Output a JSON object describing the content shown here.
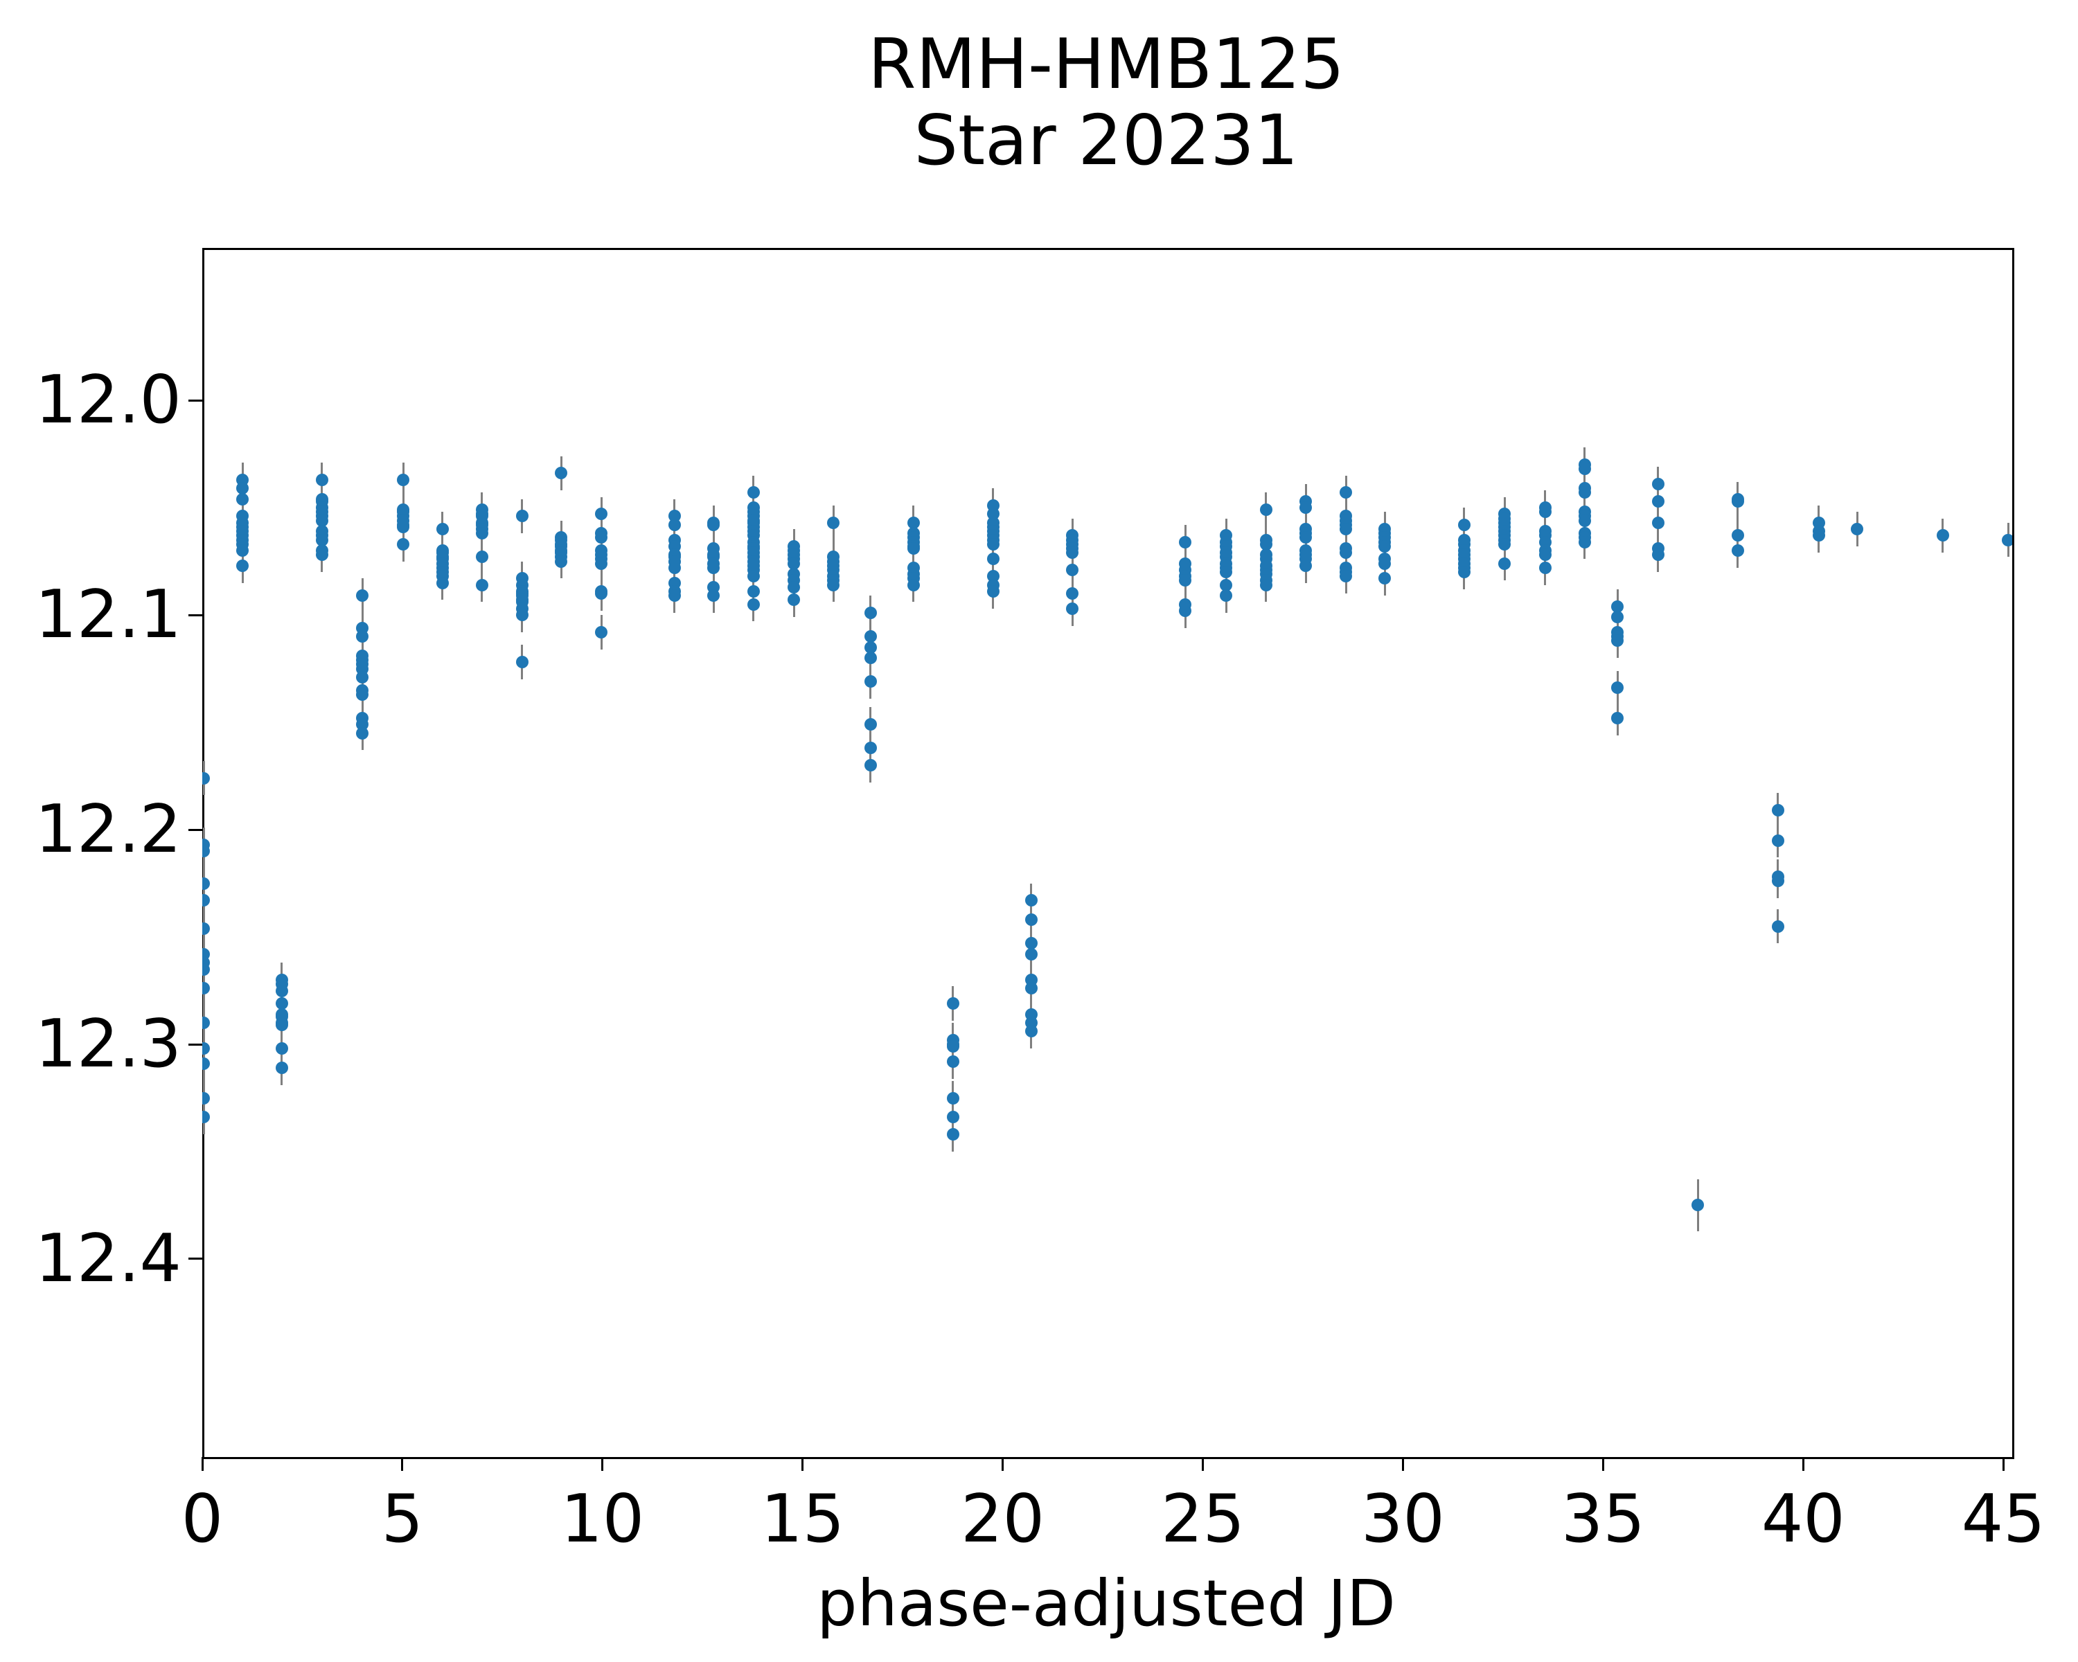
{
  "title": {
    "line1": "RMH-HMB125",
    "line2": "Star 20231"
  },
  "chart_data": {
    "type": "scatter",
    "title": "RMH-HMB125\nStar 20231",
    "xlabel": "phase-adjusted JD",
    "ylabel": "",
    "legend": "none",
    "grid": false,
    "marker_color": "#1f77b4",
    "errorbar_color": "#7f7f7f",
    "default_err_mag": 0.008,
    "axes": {
      "xlim": [
        0,
        45.17
      ],
      "ylim_top": 11.929,
      "ylim_bottom": 12.4913,
      "y_inverted_magnitude_axis": true,
      "x_ticks": [
        0,
        5,
        10,
        15,
        20,
        25,
        30,
        35,
        40,
        45
      ],
      "y_ticks": [
        12.0,
        12.1,
        12.2,
        12.3,
        12.4
      ],
      "y_tick_labels": [
        "12.0",
        "12.1",
        "12.2",
        "12.3",
        "12.4"
      ]
    },
    "clusters": [
      {
        "x": 0.04,
        "mags": [
          12.176,
          12.207,
          12.21,
          12.225,
          12.233,
          12.246,
          12.258,
          12.262,
          12.265,
          12.274,
          12.29,
          12.302,
          12.309,
          12.325,
          12.334
        ]
      },
      {
        "x": 1.01,
        "mags": [
          12.037,
          12.041,
          12.046,
          12.054,
          12.057,
          12.059,
          12.061,
          12.063,
          12.065,
          12.067,
          12.07,
          12.077
        ]
      },
      {
        "x": 1.99,
        "mags": [
          12.27,
          12.272,
          12.275,
          12.281,
          12.286,
          12.287,
          12.29,
          12.291,
          12.302,
          12.311
        ]
      },
      {
        "x": 2.99,
        "mags": [
          12.037,
          12.046,
          12.047,
          12.05,
          12.052,
          12.054,
          12.056,
          12.061,
          12.063,
          12.065,
          12.07,
          12.072
        ]
      },
      {
        "x": 4.0,
        "mags": [
          12.091,
          12.106,
          12.11,
          12.119,
          12.121,
          12.123,
          12.125,
          12.129,
          12.135,
          12.137,
          12.148,
          12.151,
          12.155
        ]
      },
      {
        "x": 5.02,
        "mags": [
          12.037,
          12.051,
          12.052,
          12.054,
          12.056,
          12.058,
          12.059,
          12.067
        ]
      },
      {
        "x": 6.0,
        "mags": [
          12.06,
          12.07,
          12.071,
          12.073,
          12.074,
          12.076,
          12.078,
          12.08,
          12.082,
          12.085
        ]
      },
      {
        "x": 6.99,
        "mags": [
          12.051,
          12.053,
          12.054,
          12.057,
          12.058,
          12.06,
          12.062,
          12.073,
          12.086
        ]
      },
      {
        "x": 7.99,
        "mags": [
          12.054,
          12.083,
          12.086,
          12.089,
          12.09,
          12.091,
          12.093,
          12.094,
          12.097,
          12.1,
          12.122
        ]
      },
      {
        "x": 8.97,
        "mags": [
          12.034,
          12.064,
          12.065,
          12.067,
          12.068,
          12.07,
          12.071,
          12.073,
          12.075
        ]
      },
      {
        "x": 9.97,
        "mags": [
          12.053,
          12.062,
          12.064,
          12.07,
          12.072,
          12.074,
          12.076,
          12.089,
          12.09,
          12.108
        ]
      },
      {
        "x": 11.8,
        "mags": [
          12.054,
          12.058,
          12.065,
          12.068,
          12.072,
          12.073,
          12.075,
          12.078,
          12.085,
          12.089,
          12.091
        ]
      },
      {
        "x": 12.78,
        "mags": [
          12.057,
          12.058,
          12.069,
          12.072,
          12.073,
          12.076,
          12.078,
          12.087,
          12.091
        ]
      },
      {
        "x": 13.77,
        "mags": [
          12.043,
          12.05,
          12.052,
          12.054,
          12.056,
          12.057,
          12.059,
          12.061,
          12.063,
          12.066,
          12.068,
          12.069,
          12.071,
          12.073,
          12.075,
          12.077,
          12.079,
          12.082,
          12.089,
          12.095
        ]
      },
      {
        "x": 14.78,
        "mags": [
          12.068,
          12.07,
          12.072,
          12.074,
          12.076,
          12.081,
          12.084,
          12.087,
          12.093
        ]
      },
      {
        "x": 15.77,
        "mags": [
          12.057,
          12.073,
          12.075,
          12.077,
          12.079,
          12.082,
          12.084,
          12.086
        ]
      },
      {
        "x": 16.7,
        "mags": [
          12.099,
          12.11,
          12.115,
          12.12,
          12.131,
          12.151,
          12.162,
          12.17
        ]
      },
      {
        "x": 17.77,
        "mags": [
          12.057,
          12.062,
          12.064,
          12.066,
          12.068,
          12.069,
          12.078,
          12.081,
          12.083,
          12.086
        ]
      },
      {
        "x": 18.76,
        "mags": [
          12.281,
          12.298,
          12.3,
          12.301,
          12.308,
          12.325,
          12.334,
          12.342
        ]
      },
      {
        "x": 19.76,
        "mags": [
          12.049,
          12.053,
          12.057,
          12.059,
          12.061,
          12.063,
          12.065,
          12.067,
          12.074,
          12.082,
          12.086,
          12.089
        ]
      },
      {
        "x": 20.71,
        "mags": [
          12.233,
          12.242,
          12.253,
          12.258,
          12.27,
          12.274,
          12.286,
          12.29,
          12.294
        ]
      },
      {
        "x": 21.74,
        "mags": [
          12.063,
          12.065,
          12.067,
          12.069,
          12.071,
          12.079,
          12.09,
          12.097
        ]
      },
      {
        "x": 24.56,
        "mags": [
          12.066,
          12.076,
          12.079,
          12.082,
          12.084,
          12.095,
          12.098
        ]
      },
      {
        "x": 25.58,
        "mags": [
          12.063,
          12.066,
          12.068,
          12.071,
          12.073,
          12.076,
          12.078,
          12.08,
          12.086,
          12.091
        ]
      },
      {
        "x": 26.58,
        "mags": [
          12.051,
          12.065,
          12.067,
          12.072,
          12.074,
          12.077,
          12.079,
          12.081,
          12.084,
          12.086
        ]
      },
      {
        "x": 27.57,
        "mags": [
          12.047,
          12.05,
          12.06,
          12.062,
          12.064,
          12.07,
          12.072,
          12.074,
          12.077
        ]
      },
      {
        "x": 28.58,
        "mags": [
          12.043,
          12.054,
          12.056,
          12.058,
          12.06,
          12.069,
          12.071,
          12.078,
          12.08,
          12.082
        ]
      },
      {
        "x": 29.55,
        "mags": [
          12.06,
          12.062,
          12.064,
          12.066,
          12.068,
          12.074,
          12.076,
          12.083
        ]
      },
      {
        "x": 31.53,
        "mags": [
          12.058,
          12.065,
          12.067,
          12.07,
          12.072,
          12.074,
          12.076,
          12.078,
          12.08
        ]
      },
      {
        "x": 32.54,
        "mags": [
          12.053,
          12.055,
          12.057,
          12.059,
          12.061,
          12.063,
          12.065,
          12.067,
          12.076
        ]
      },
      {
        "x": 33.55,
        "mags": [
          12.05,
          12.052,
          12.061,
          12.063,
          12.066,
          12.07,
          12.072,
          12.078
        ]
      },
      {
        "x": 34.54,
        "mags": [
          12.03,
          12.032,
          12.041,
          12.043,
          12.052,
          12.054,
          12.056,
          12.062,
          12.064,
          12.066
        ]
      },
      {
        "x": 35.36,
        "mags": [
          12.096,
          12.101,
          12.108,
          12.11,
          12.112,
          12.134,
          12.148
        ]
      },
      {
        "x": 36.37,
        "mags": [
          12.039,
          12.047,
          12.057,
          12.069,
          12.072
        ]
      },
      {
        "x": 37.37,
        "err": 0.012,
        "mags": [
          12.375
        ]
      },
      {
        "x": 38.36,
        "mags": [
          12.046,
          12.047,
          12.063,
          12.07
        ]
      },
      {
        "x": 39.37,
        "mags": [
          12.191,
          12.205,
          12.222,
          12.224,
          12.245
        ]
      },
      {
        "x": 40.39,
        "mags": [
          12.057,
          12.061,
          12.063
        ]
      },
      {
        "x": 41.35,
        "mags": [
          12.06
        ]
      },
      {
        "x": 43.49,
        "mags": [
          12.063
        ]
      },
      {
        "x": 45.12,
        "mags": [
          12.065
        ]
      }
    ]
  }
}
